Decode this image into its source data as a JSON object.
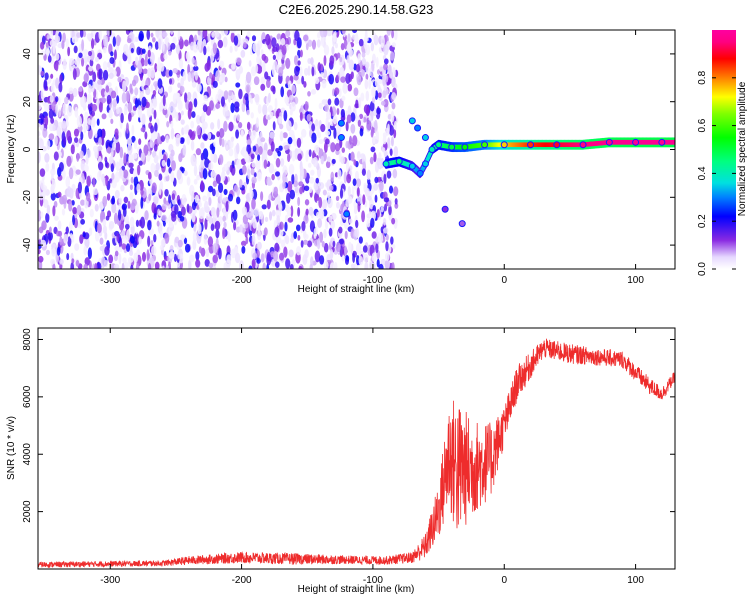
{
  "title": "C2E6.2025.290.14.58.G23",
  "chart_data": [
    {
      "type": "heatmap",
      "xlabel": "Height of straight line (km)",
      "ylabel": "Frequency (Hz)",
      "xlim": [
        -355,
        130
      ],
      "ylim": [
        -50,
        50
      ],
      "x_ticks": [
        -300,
        -200,
        -100,
        0,
        100
      ],
      "y_ticks": [
        -40,
        -20,
        0,
        20,
        40
      ],
      "x_tick_labels": [
        "-300",
        "-200",
        "-100",
        "0",
        "100"
      ],
      "y_tick_labels": [
        "-40",
        "-20",
        "0",
        "20",
        "40"
      ],
      "colorbar": {
        "label": "Normalized spectral amplitude",
        "range": [
          0,
          1
        ],
        "ticks": [
          0.0,
          0.2,
          0.4,
          0.6,
          0.8
        ],
        "tick_labels": [
          "0.0",
          "0.2",
          "0.4",
          "0.6",
          "0.8"
        ]
      },
      "noise_region": {
        "x_range": [
          -355,
          -82
        ],
        "freq_range": [
          -50,
          50
        ],
        "typical_amplitude": 0.15
      },
      "signal_track": [
        {
          "x": -90,
          "freq": -6,
          "amp": 0.4
        },
        {
          "x": -80,
          "freq": -5,
          "amp": 0.45
        },
        {
          "x": -70,
          "freq": -7,
          "amp": 0.35
        },
        {
          "x": -64,
          "freq": -10,
          "amp": 0.3
        },
        {
          "x": -60,
          "freq": -6,
          "amp": 0.35
        },
        {
          "x": -55,
          "freq": 0,
          "amp": 0.4
        },
        {
          "x": -50,
          "freq": 2,
          "amp": 0.45
        },
        {
          "x": -40,
          "freq": 1,
          "amp": 0.5
        },
        {
          "x": -30,
          "freq": 1,
          "amp": 0.55
        },
        {
          "x": -15,
          "freq": 2,
          "amp": 0.6
        },
        {
          "x": 0,
          "freq": 2,
          "amp": 0.75
        },
        {
          "x": 20,
          "freq": 2,
          "amp": 0.85
        },
        {
          "x": 40,
          "freq": 2,
          "amp": 0.9
        },
        {
          "x": 60,
          "freq": 2,
          "amp": 0.95
        },
        {
          "x": 80,
          "freq": 3,
          "amp": 0.97
        },
        {
          "x": 100,
          "freq": 3,
          "amp": 0.98
        },
        {
          "x": 120,
          "freq": 3,
          "amp": 0.98
        }
      ],
      "branch_points": [
        {
          "x": -70,
          "freq": 12,
          "amp": 0.35
        },
        {
          "x": -66,
          "freq": 9,
          "amp": 0.3
        },
        {
          "x": -60,
          "freq": 5,
          "amp": 0.35
        },
        {
          "x": -124,
          "freq": 11,
          "amp": 0.3
        },
        {
          "x": -124,
          "freq": 5,
          "amp": 0.3
        },
        {
          "x": -120,
          "freq": -27,
          "amp": 0.3
        },
        {
          "x": -45,
          "freq": -25,
          "amp": 0.12
        },
        {
          "x": -32,
          "freq": -31,
          "amp": 0.1
        }
      ]
    },
    {
      "type": "line",
      "xlabel": "Height of straight line (km)",
      "ylabel": "SNR (10 * v/v)",
      "xlim": [
        -355,
        130
      ],
      "ylim": [
        0,
        8400
      ],
      "x_ticks": [
        -300,
        -200,
        -100,
        0,
        100
      ],
      "y_ticks": [
        2000,
        4000,
        6000,
        8000
      ],
      "x_tick_labels": [
        "-300",
        "-200",
        "-100",
        "0",
        "100"
      ],
      "y_tick_labels": [
        "2000",
        "4000",
        "6000",
        "8000"
      ],
      "color": "#ee2c2c",
      "envelope": [
        {
          "x": -355,
          "mean": 150,
          "spread": 200
        },
        {
          "x": -260,
          "mean": 200,
          "spread": 200
        },
        {
          "x": -240,
          "mean": 300,
          "spread": 300
        },
        {
          "x": -200,
          "mean": 400,
          "spread": 400
        },
        {
          "x": -160,
          "mean": 350,
          "spread": 400
        },
        {
          "x": -120,
          "mean": 320,
          "spread": 300
        },
        {
          "x": -90,
          "mean": 300,
          "spread": 300
        },
        {
          "x": -70,
          "mean": 400,
          "spread": 400
        },
        {
          "x": -60,
          "mean": 800,
          "spread": 900
        },
        {
          "x": -50,
          "mean": 2000,
          "spread": 2000
        },
        {
          "x": -42,
          "mean": 4000,
          "spread": 4000
        },
        {
          "x": -36,
          "mean": 3500,
          "spread": 5000
        },
        {
          "x": -25,
          "mean": 3500,
          "spread": 3500
        },
        {
          "x": -10,
          "mean": 3800,
          "spread": 2600
        },
        {
          "x": 0,
          "mean": 5000,
          "spread": 1400
        },
        {
          "x": 10,
          "mean": 6500,
          "spread": 1200
        },
        {
          "x": 30,
          "mean": 7700,
          "spread": 700
        },
        {
          "x": 50,
          "mean": 7500,
          "spread": 700
        },
        {
          "x": 70,
          "mean": 7400,
          "spread": 600
        },
        {
          "x": 90,
          "mean": 7300,
          "spread": 600
        },
        {
          "x": 110,
          "mean": 6400,
          "spread": 600
        },
        {
          "x": 120,
          "mean": 6100,
          "spread": 500
        },
        {
          "x": 130,
          "mean": 6700,
          "spread": 400
        }
      ]
    }
  ]
}
